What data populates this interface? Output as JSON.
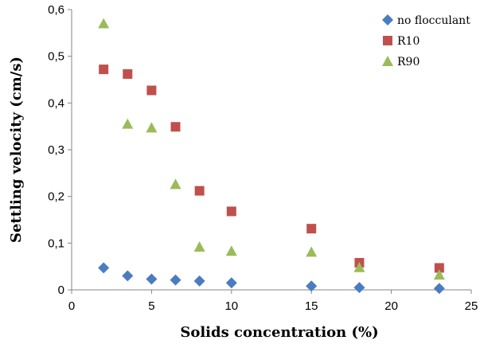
{
  "chart_data": {
    "type": "scatter",
    "title": "",
    "xlabel": "Solids concentration (%)",
    "ylabel": "Settling velocity (cm/s)",
    "xlim": [
      0,
      25
    ],
    "ylim": [
      0,
      0.6
    ],
    "xticks": [
      "0",
      "5",
      "10",
      "15",
      "20",
      "25"
    ],
    "yticks": [
      "0",
      "0,1",
      "0,2",
      "0,3",
      "0,4",
      "0,5",
      "0,6"
    ],
    "grid": false,
    "legend_position": "top-right",
    "series": [
      {
        "name": "no flocculant",
        "marker": "diamond",
        "color": "#4a7cc1",
        "x": [
          2,
          3.5,
          5,
          6.5,
          8,
          10,
          15,
          18,
          23
        ],
        "y": [
          0.047,
          0.03,
          0.023,
          0.021,
          0.019,
          0.015,
          0.008,
          0.005,
          0.003
        ]
      },
      {
        "name": "R10",
        "marker": "square",
        "color": "#c0504d",
        "x": [
          2,
          3.5,
          5,
          6.5,
          8,
          10,
          15,
          18,
          23
        ],
        "y": [
          0.472,
          0.462,
          0.427,
          0.349,
          0.212,
          0.168,
          0.131,
          0.058,
          0.047
        ]
      },
      {
        "name": "R90",
        "marker": "triangle",
        "color": "#9bbb59",
        "x": [
          2,
          3.5,
          5,
          6.5,
          8,
          10,
          15,
          18,
          23
        ],
        "y": [
          0.57,
          0.355,
          0.347,
          0.226,
          0.092,
          0.083,
          0.081,
          0.048,
          0.032
        ]
      }
    ]
  }
}
